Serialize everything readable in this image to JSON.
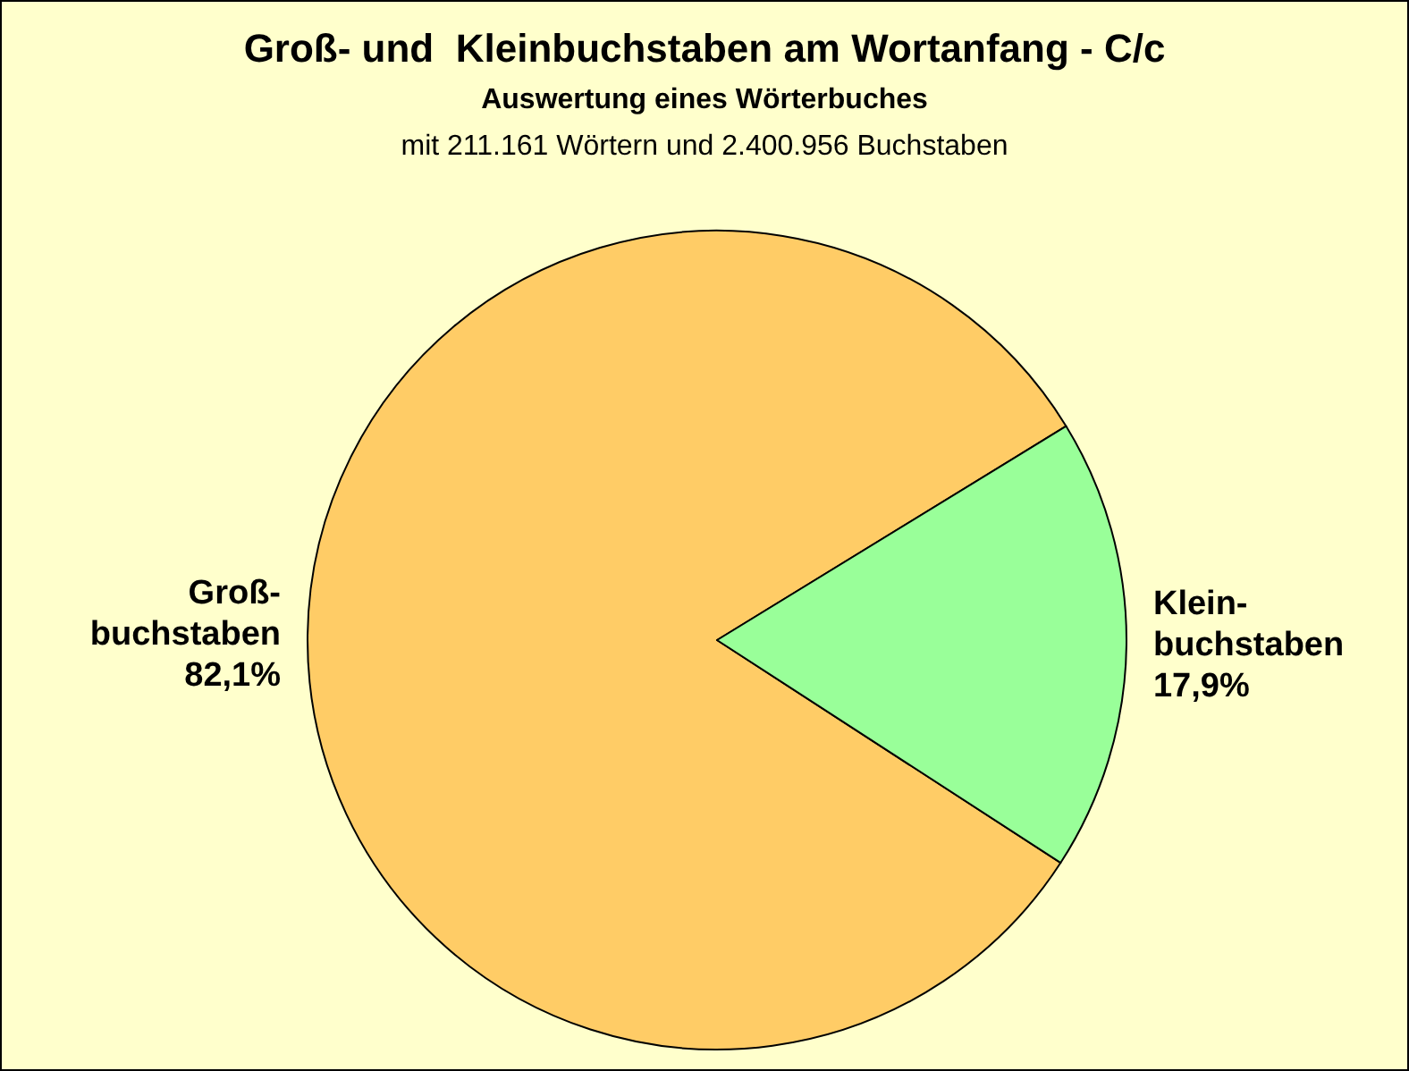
{
  "chart_data": {
    "type": "pie",
    "title": "Groß- und  Kleinbuchstaben am Wortanfang - C/c",
    "subtitle": "Auswertung eines Wörterbuches",
    "annotations": [
      "mit 211.161 Wörtern und 2.400.956 Buchstaben"
    ],
    "categories": [
      "Groß-\nbuchstaben",
      "Klein-\nbuchstaben"
    ],
    "values": [
      82.1,
      17.9
    ],
    "value_labels": [
      "82,1%",
      "17,9%"
    ],
    "colors": [
      "#ffcc66",
      "#99ff99"
    ]
  }
}
